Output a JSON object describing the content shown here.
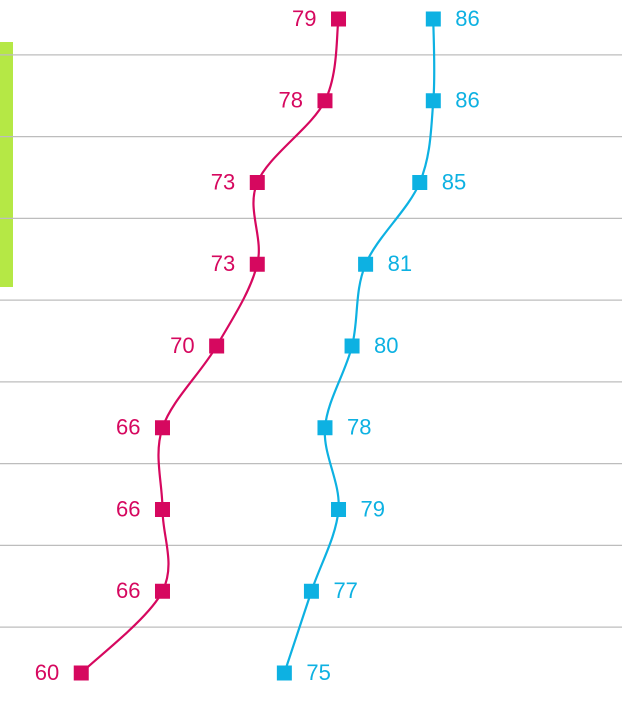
{
  "chart_data": {
    "type": "line",
    "categories": [
      null,
      null,
      null,
      null,
      null,
      null,
      null,
      null,
      null
    ],
    "series": [
      {
        "name": null,
        "color": "#d6085f",
        "values": [
          79,
          78,
          73,
          73,
          70,
          66,
          66,
          66,
          60
        ]
      },
      {
        "name": null,
        "color": "#0db1e2",
        "values": [
          86,
          86,
          85,
          81,
          80,
          78,
          79,
          77,
          75
        ]
      }
    ],
    "xlim": [
      54,
      100.6
    ],
    "grid": true
  }
}
